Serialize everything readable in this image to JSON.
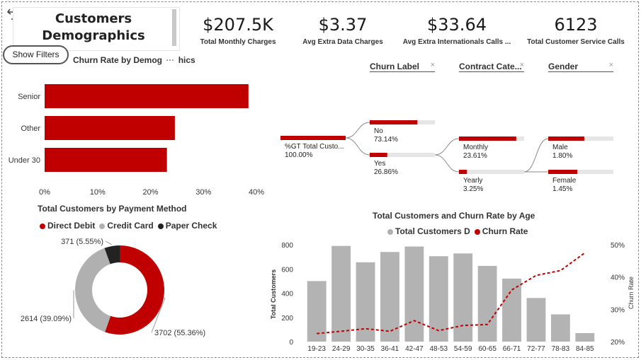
{
  "title": {
    "line1": "Customers",
    "line2": "Demographics"
  },
  "show_filters_label": "Show Filters",
  "colors": {
    "accent": "#c00000",
    "gray": "#b0b0b0",
    "dark": "#222222"
  },
  "kpis": [
    {
      "value": "$207.5K",
      "label": "Total Monthly Charges"
    },
    {
      "value": "$3.37",
      "label": "Avg Extra Data Charges"
    },
    {
      "value": "$33.64",
      "label": "Avg Extra Internationals Calls ..."
    },
    {
      "value": "6123",
      "label": "Total Customer Service Calls"
    }
  ],
  "slicers": [
    {
      "label": "Churn Label",
      "clear": "×"
    },
    {
      "label": "Contract Cate...",
      "clear": "×"
    },
    {
      "label": "Gender",
      "clear": "×"
    }
  ],
  "churn_demo": {
    "title": "Churn Rate by Demog",
    "title_tail": "hics",
    "title_overflow": "···"
  },
  "payment": {
    "title": "Total Customers by Payment Method",
    "legend": [
      {
        "name": "Direct Debit",
        "color": "#c00000"
      },
      {
        "name": "Credit Card",
        "color": "#b0b0b0"
      },
      {
        "name": "Paper Check",
        "color": "#222222"
      }
    ]
  },
  "age": {
    "title": "Total Customers and Churn Rate by Age",
    "legend": [
      {
        "name": "Total Customers D",
        "color": "#b0b0b0"
      },
      {
        "name": "Churn Rate",
        "color": "#c00000"
      }
    ]
  },
  "decomp": {
    "root": {
      "label": "%GT Total Custo...",
      "value": "100.00%",
      "pct": 100
    },
    "churn": [
      {
        "label": "No",
        "value": "73.14%",
        "pct": 73.14
      },
      {
        "label": "Yes",
        "value": "26.86%",
        "pct": 26.86
      }
    ],
    "contract": [
      {
        "label": "Monthly",
        "value": "23.61%",
        "pct": 23.61
      },
      {
        "label": "Yearly",
        "value": "3.25%",
        "pct": 3.25
      }
    ],
    "gender": [
      {
        "label": "Male",
        "value": "1.80%",
        "pct": 1.8
      },
      {
        "label": "Female",
        "value": "1.45%",
        "pct": 1.45
      }
    ]
  },
  "chart_data": [
    {
      "type": "bar",
      "orientation": "horizontal",
      "categories": [
        "Senior",
        "Other",
        "Under 30"
      ],
      "values": [
        38.5,
        24.6,
        23.1
      ],
      "unit": "%",
      "xlim": [
        0,
        40
      ],
      "xticks": [
        "0%",
        "10%",
        "20%",
        "30%",
        "40%"
      ]
    },
    {
      "type": "pie",
      "donut": true,
      "categories": [
        "Direct Debit",
        "Credit Card",
        "Paper Check"
      ],
      "values": [
        3702,
        2614,
        371
      ],
      "labels": [
        "3702 (55.36%)",
        "2614 (39.09%)",
        "371 (5.55%)"
      ]
    },
    {
      "type": "bar",
      "combo": "bar+line",
      "categories": [
        "19-23",
        "24-29",
        "30-35",
        "36-41",
        "42-47",
        "48-53",
        "54-59",
        "60-65",
        "66-71",
        "72-77",
        "78-83",
        "84-85"
      ],
      "series": [
        {
          "name": "Total Customers D",
          "values": [
            500,
            790,
            655,
            740,
            785,
            705,
            728,
            625,
            520,
            360,
            225,
            70
          ]
        },
        {
          "name": "Churn Rate",
          "values": [
            22.5,
            23.2,
            24.0,
            23.2,
            26.5,
            23.4,
            25.0,
            25.3,
            36.0,
            40.5,
            42.0,
            47.5
          ]
        }
      ],
      "ylabel": "Total Customers",
      "y2label": "Churn Rate",
      "ylim": [
        0,
        800
      ],
      "y2lim": [
        20,
        50
      ],
      "yticks": [
        "0",
        "200",
        "400",
        "600",
        "800"
      ],
      "y2ticks": [
        "20%",
        "30%",
        "40%",
        "50%"
      ]
    }
  ]
}
